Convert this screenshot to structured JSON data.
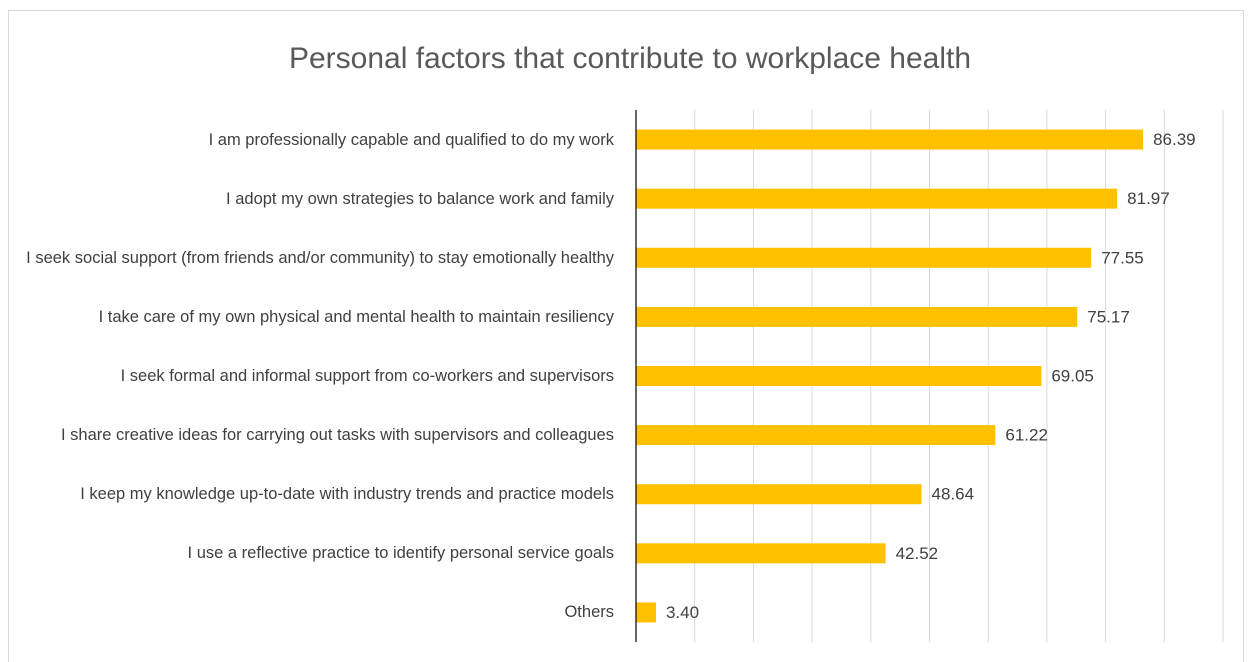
{
  "chart_data": {
    "type": "barh",
    "title": "Personal factors that contribute to workplace health",
    "categories": [
      "I am professionally capable and qualified to do my work",
      "I adopt my own strategies to balance work and family",
      "I seek social support (from friends and/or community) to stay emotionally healthy",
      "I take care of my own physical and mental health to maintain resiliency",
      "I seek formal and informal support from co-workers and supervisors",
      "I share creative ideas for carrying out tasks with supervisors and colleagues",
      "I keep my knowledge up-to-date with industry trends and practice models",
      "I use a reflective practice to identify personal service goals",
      "Others"
    ],
    "values": [
      86.39,
      81.97,
      77.55,
      75.17,
      69.05,
      61.22,
      48.64,
      42.52,
      3.4
    ],
    "value_labels": [
      "86.39",
      "81.97",
      "77.55",
      "75.17",
      "69.05",
      "61.22",
      "48.64",
      "42.52",
      "3.40"
    ],
    "color": "#ffc000",
    "xlim": [
      0,
      100
    ],
    "xticks": [
      0,
      10,
      20,
      30,
      40,
      50,
      60,
      70,
      80,
      90,
      100
    ],
    "grid": true
  }
}
